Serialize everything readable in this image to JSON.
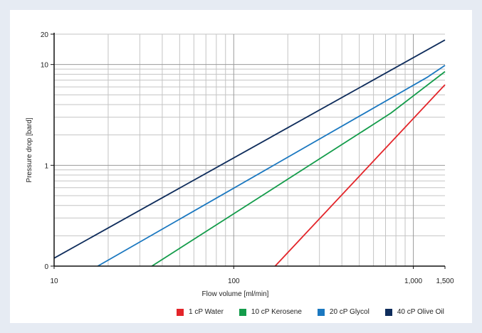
{
  "chart_data": {
    "type": "line",
    "xlabel": "Flow volume [ml/min]",
    "ylabel": "Pressure drop [bard]",
    "x_scale": "log",
    "xlim": [
      10,
      1500
    ],
    "x_ticks": [
      {
        "value": 10,
        "label": "10"
      },
      {
        "value": 100,
        "label": "100"
      },
      {
        "value": 1000,
        "label": "1,000"
      },
      {
        "value": 1500,
        "label": "1,500"
      }
    ],
    "y_scale": "log",
    "ylim": [
      0.1,
      20
    ],
    "y_ticks": [
      {
        "value": 0.1,
        "label": "0"
      },
      {
        "value": 1,
        "label": "1"
      },
      {
        "value": 10,
        "label": "10"
      },
      {
        "value": 20,
        "label": "20"
      }
    ],
    "grid": true,
    "legend_position": "bottom",
    "series": [
      {
        "name": "1 cP Water",
        "color": "#e3252a",
        "points": [
          [
            170,
            0.1
          ],
          [
            1500,
            6.3
          ]
        ]
      },
      {
        "name": "10 cP Kerosene",
        "color": "#149c4b",
        "points": [
          [
            35,
            0.1
          ],
          [
            590,
            2.5
          ],
          [
            750,
            3.3
          ],
          [
            1500,
            8.5
          ]
        ]
      },
      {
        "name": "20 cP Glycol",
        "color": "#1b78c0",
        "points": [
          [
            17.5,
            0.1
          ],
          [
            1200,
            7.5
          ],
          [
            1500,
            9.8
          ]
        ]
      },
      {
        "name": "40 cP Olive Oil",
        "color": "#0f2d5c",
        "points": [
          [
            10,
            0.12
          ],
          [
            1500,
            17.5
          ]
        ]
      }
    ]
  }
}
